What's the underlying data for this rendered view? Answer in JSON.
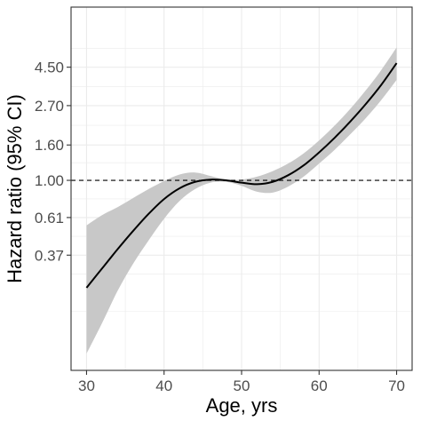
{
  "chart_data": {
    "type": "line",
    "xlabel": "Age, yrs",
    "ylabel": "Hazard ratio (95% CI)",
    "xlim": [
      28,
      72
    ],
    "x_ticks": [
      30,
      40,
      50,
      60,
      70
    ],
    "y_scale": "log",
    "ylim": [
      0.08,
      10.0
    ],
    "y_ticks": [
      0.37,
      0.61,
      1.0,
      1.6,
      2.7,
      4.5
    ],
    "y_tick_labels": [
      "0.37",
      "0.61",
      "1.00",
      "1.60",
      "2.70",
      "4.50"
    ],
    "reference_line": {
      "y": 1.0,
      "style": "dashed"
    },
    "grid": true,
    "colors": {
      "line": "#000000",
      "band": "#c8c8c8",
      "grid": "#ebebeb"
    },
    "series": [
      {
        "x": [
          30,
          32,
          34,
          36,
          38,
          40,
          42,
          44,
          46,
          48,
          50,
          52,
          54,
          56,
          58,
          60,
          62,
          64,
          66,
          68,
          70
        ],
        "hr": [
          0.24,
          0.31,
          0.4,
          0.51,
          0.64,
          0.78,
          0.9,
          0.98,
          1.01,
          1.0,
          0.97,
          0.95,
          0.98,
          1.07,
          1.22,
          1.45,
          1.76,
          2.18,
          2.75,
          3.55,
          4.75
        ],
        "lower": [
          0.1,
          0.15,
          0.23,
          0.33,
          0.45,
          0.6,
          0.76,
          0.89,
          0.97,
          0.98,
          0.93,
          0.86,
          0.85,
          0.92,
          1.05,
          1.25,
          1.5,
          1.84,
          2.28,
          2.9,
          3.8
        ],
        "upper": [
          0.55,
          0.63,
          0.7,
          0.79,
          0.89,
          0.99,
          1.08,
          1.11,
          1.06,
          1.01,
          1.01,
          1.05,
          1.13,
          1.25,
          1.43,
          1.7,
          2.07,
          2.58,
          3.3,
          4.32,
          5.85
        ]
      }
    ]
  }
}
